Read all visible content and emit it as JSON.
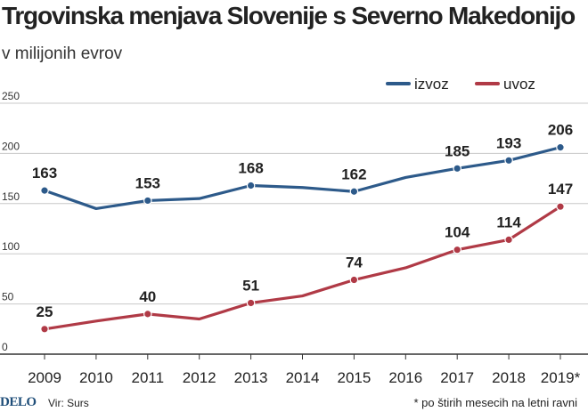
{
  "title": "Trgovinska menjava Slovenije s Severno Makedonijo",
  "subtitle": "v milijonih evrov",
  "footer": {
    "logo": "DELO",
    "source": "Vir: Surs",
    "note": "* po štirih mesecih na letni ravni"
  },
  "colors": {
    "izvoz": "#2d5a8a",
    "uvoz": "#b03a46",
    "grid": "#c8c8c8",
    "axis": "#333333"
  },
  "chart_data": {
    "type": "line",
    "title": "Trgovinska menjava Slovenije s Severno Makedonijo",
    "subtitle": "v milijonih evrov",
    "xlabel": "",
    "ylabel": "",
    "x": [
      "2009",
      "2010",
      "2011",
      "2012",
      "2013",
      "2014",
      "2015",
      "2016",
      "2017",
      "2018",
      "2019*"
    ],
    "ylim": [
      0,
      250
    ],
    "yticks": [
      0,
      50,
      100,
      150,
      200,
      250
    ],
    "grid": true,
    "legend": "top-right",
    "series": [
      {
        "name": "izvoz",
        "values": [
          163,
          145,
          153,
          155,
          168,
          166,
          162,
          176,
          185,
          193,
          206
        ],
        "labels": [
          "163",
          null,
          "153",
          null,
          "168",
          null,
          "162",
          null,
          "185",
          "193",
          "206"
        ]
      },
      {
        "name": "uvoz",
        "values": [
          25,
          33,
          40,
          35,
          51,
          58,
          74,
          86,
          104,
          114,
          147
        ],
        "labels": [
          "25",
          null,
          "40",
          null,
          "51",
          null,
          "74",
          null,
          "104",
          "114",
          "147"
        ]
      }
    ]
  }
}
